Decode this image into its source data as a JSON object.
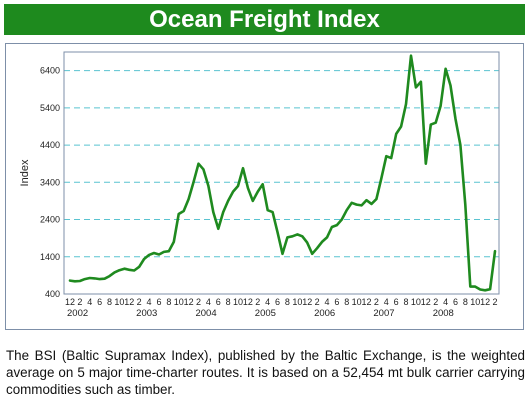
{
  "page": {
    "title": "Ocean Freight Index",
    "caption": "The BSI (Baltic Supramax Index), published by the Baltic Exchange, is the weighted average on 5 major time-charter routes. It is based on a 52,454 mt bulk carrier carrying commodities such as timber."
  },
  "colors": {
    "banner": "#1e8a1e",
    "line": "#1f8a1f",
    "grid": "#59c3d0",
    "axis": "#7d8fa8"
  },
  "chart_data": {
    "type": "line",
    "title": "",
    "xlabel": "",
    "ylabel": "Index",
    "ylim": [
      400,
      6900
    ],
    "yticks": [
      400,
      1400,
      2400,
      3400,
      4400,
      5400,
      6400
    ],
    "grid": "horizontal dashed",
    "legend": "none",
    "x_ticks": [
      "12",
      "2",
      "4",
      "6",
      "8",
      "10",
      "12",
      "2",
      "4",
      "6",
      "8",
      "10",
      "12",
      "2",
      "4",
      "6",
      "8",
      "10",
      "12",
      "2",
      "4",
      "6",
      "8",
      "10",
      "12",
      "2",
      "4",
      "6",
      "8",
      "10",
      "12",
      "2",
      "4",
      "6",
      "8",
      "10",
      "12",
      "2",
      "4",
      "6",
      "8",
      "10",
      "12",
      "2"
    ],
    "years": [
      {
        "label": "2002",
        "tick_index": 0
      },
      {
        "label": "2003",
        "tick_index": 7
      },
      {
        "label": "2004",
        "tick_index": 13
      },
      {
        "label": "2005",
        "tick_index": 19
      },
      {
        "label": "2006",
        "tick_index": 25
      },
      {
        "label": "2007",
        "tick_index": 31
      },
      {
        "label": "2008",
        "tick_index": 37
      }
    ],
    "series": [
      {
        "name": "BSI",
        "points": [
          {
            "x": "2001-12",
            "y": 760
          },
          {
            "x": "2002-01",
            "y": 740
          },
          {
            "x": "2002-02",
            "y": 750
          },
          {
            "x": "2002-03",
            "y": 800
          },
          {
            "x": "2002-04",
            "y": 830
          },
          {
            "x": "2002-05",
            "y": 820
          },
          {
            "x": "2002-06",
            "y": 800
          },
          {
            "x": "2002-07",
            "y": 810
          },
          {
            "x": "2002-08",
            "y": 880
          },
          {
            "x": "2002-09",
            "y": 980
          },
          {
            "x": "2002-10",
            "y": 1040
          },
          {
            "x": "2002-11",
            "y": 1080
          },
          {
            "x": "2002-12",
            "y": 1050
          },
          {
            "x": "2003-01",
            "y": 1030
          },
          {
            "x": "2003-02",
            "y": 1130
          },
          {
            "x": "2003-03",
            "y": 1340
          },
          {
            "x": "2003-04",
            "y": 1450
          },
          {
            "x": "2003-05",
            "y": 1500
          },
          {
            "x": "2003-06",
            "y": 1460
          },
          {
            "x": "2003-07",
            "y": 1530
          },
          {
            "x": "2003-08",
            "y": 1550
          },
          {
            "x": "2003-09",
            "y": 1800
          },
          {
            "x": "2003-10",
            "y": 2550
          },
          {
            "x": "2003-11",
            "y": 2630
          },
          {
            "x": "2003-12",
            "y": 2950
          },
          {
            "x": "2004-01",
            "y": 3400
          },
          {
            "x": "2004-02",
            "y": 3900
          },
          {
            "x": "2004-03",
            "y": 3750
          },
          {
            "x": "2004-04",
            "y": 3300
          },
          {
            "x": "2004-05",
            "y": 2600
          },
          {
            "x": "2004-06",
            "y": 2150
          },
          {
            "x": "2004-07",
            "y": 2600
          },
          {
            "x": "2004-08",
            "y": 2900
          },
          {
            "x": "2004-09",
            "y": 3150
          },
          {
            "x": "2004-10",
            "y": 3300
          },
          {
            "x": "2004-11",
            "y": 3780
          },
          {
            "x": "2004-12",
            "y": 3250
          },
          {
            "x": "2005-01",
            "y": 2900
          },
          {
            "x": "2005-02",
            "y": 3150
          },
          {
            "x": "2005-03",
            "y": 3350
          },
          {
            "x": "2005-04",
            "y": 2650
          },
          {
            "x": "2005-05",
            "y": 2600
          },
          {
            "x": "2005-06",
            "y": 2050
          },
          {
            "x": "2005-07",
            "y": 1480
          },
          {
            "x": "2005-08",
            "y": 1920
          },
          {
            "x": "2005-09",
            "y": 1950
          },
          {
            "x": "2005-10",
            "y": 2000
          },
          {
            "x": "2005-11",
            "y": 1950
          },
          {
            "x": "2005-12",
            "y": 1780
          },
          {
            "x": "2006-01",
            "y": 1480
          },
          {
            "x": "2006-02",
            "y": 1630
          },
          {
            "x": "2006-03",
            "y": 1800
          },
          {
            "x": "2006-04",
            "y": 1920
          },
          {
            "x": "2006-05",
            "y": 2200
          },
          {
            "x": "2006-06",
            "y": 2250
          },
          {
            "x": "2006-07",
            "y": 2400
          },
          {
            "x": "2006-08",
            "y": 2650
          },
          {
            "x": "2006-09",
            "y": 2850
          },
          {
            "x": "2006-10",
            "y": 2800
          },
          {
            "x": "2006-11",
            "y": 2780
          },
          {
            "x": "2006-12",
            "y": 2920
          },
          {
            "x": "2007-01",
            "y": 2820
          },
          {
            "x": "2007-02",
            "y": 2950
          },
          {
            "x": "2007-03",
            "y": 3500
          },
          {
            "x": "2007-04",
            "y": 4100
          },
          {
            "x": "2007-05",
            "y": 4050
          },
          {
            "x": "2007-06",
            "y": 4700
          },
          {
            "x": "2007-07",
            "y": 4900
          },
          {
            "x": "2007-08",
            "y": 5500
          },
          {
            "x": "2007-09",
            "y": 6800
          },
          {
            "x": "2007-10",
            "y": 5950
          },
          {
            "x": "2007-11",
            "y": 6100
          },
          {
            "x": "2007-12",
            "y": 3900
          },
          {
            "x": "2008-01",
            "y": 4950
          },
          {
            "x": "2008-02",
            "y": 5000
          },
          {
            "x": "2008-03",
            "y": 5450
          },
          {
            "x": "2008-04",
            "y": 6450
          },
          {
            "x": "2008-05",
            "y": 6000
          },
          {
            "x": "2008-06",
            "y": 5100
          },
          {
            "x": "2008-07",
            "y": 4400
          },
          {
            "x": "2008-08",
            "y": 2800
          },
          {
            "x": "2008-09",
            "y": 600
          },
          {
            "x": "2008-10",
            "y": 600
          },
          {
            "x": "2008-11",
            "y": 520
          },
          {
            "x": "2008-12",
            "y": 500
          },
          {
            "x": "2009-01",
            "y": 530
          },
          {
            "x": "2009-02",
            "y": 1550
          }
        ]
      }
    ]
  }
}
